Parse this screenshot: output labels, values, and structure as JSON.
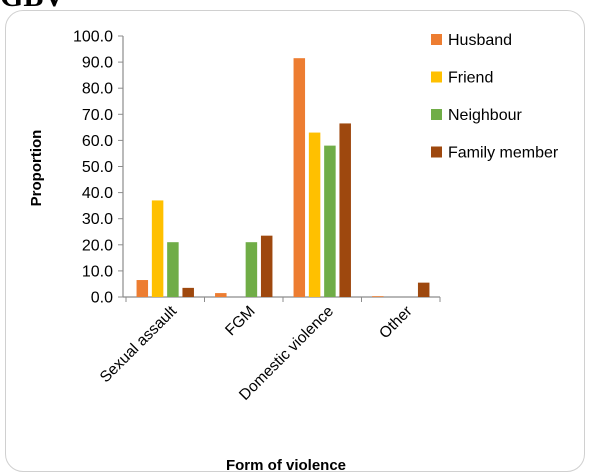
{
  "heading_fragment": "GBV",
  "chart_data": {
    "type": "bar",
    "title": "",
    "xlabel": "Form of violence",
    "ylabel": "Proportion",
    "ylim": [
      0,
      100
    ],
    "y_ticks": [
      "0.0",
      "10.0",
      "20.0",
      "30.0",
      "40.0",
      "50.0",
      "60.0",
      "70.0",
      "80.0",
      "90.0",
      "100.0"
    ],
    "categories": [
      "Sexual assault",
      "FGM",
      "Domestic violence",
      "Other"
    ],
    "series": [
      {
        "name": "Husband",
        "color": "#ed7d31",
        "values": [
          6.5,
          1.5,
          91.5,
          0.3
        ]
      },
      {
        "name": "Friend",
        "color": "#ffc000",
        "values": [
          37.0,
          0.0,
          63.0,
          0.0
        ]
      },
      {
        "name": "Neighbour",
        "color": "#70ad47",
        "values": [
          21.0,
          21.0,
          58.0,
          0.0
        ]
      },
      {
        "name": "Family member",
        "color": "#9e480e",
        "values": [
          3.5,
          23.5,
          66.5,
          5.5
        ]
      }
    ],
    "grid": false,
    "legend_position": "top-right"
  }
}
